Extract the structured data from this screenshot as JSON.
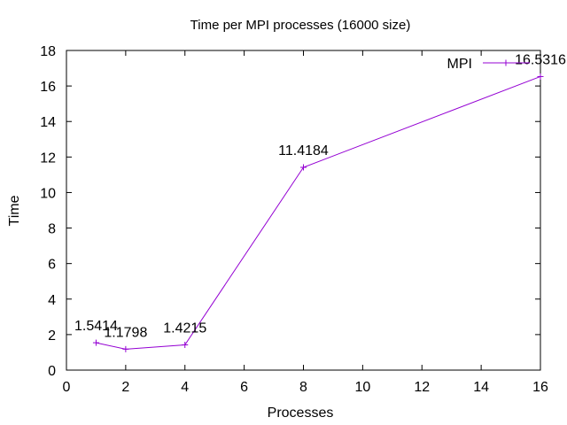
{
  "chart_data": {
    "type": "line",
    "title": "Time per MPI processes (16000 size)",
    "xlabel": "Processes",
    "ylabel": "Time",
    "xlim": [
      0,
      16
    ],
    "ylim": [
      0,
      18
    ],
    "x_ticks": [
      "0",
      "2",
      "4",
      "6",
      "8",
      "10",
      "12",
      "14",
      "16"
    ],
    "y_ticks": [
      "0",
      "2",
      "4",
      "6",
      "8",
      "10",
      "12",
      "14",
      "16",
      "18"
    ],
    "grid": false,
    "legend_position": "top-right",
    "series": [
      {
        "name": "MPI",
        "color": "#9400d3",
        "marker": "plus",
        "x": [
          1,
          2,
          4,
          8,
          16
        ],
        "y": [
          1.5414,
          1.1798,
          1.4215,
          11.4184,
          16.5316
        ],
        "labels": [
          "1.5414",
          "1.1798",
          "1.4215",
          "11.4184",
          "16.5316"
        ]
      }
    ]
  }
}
